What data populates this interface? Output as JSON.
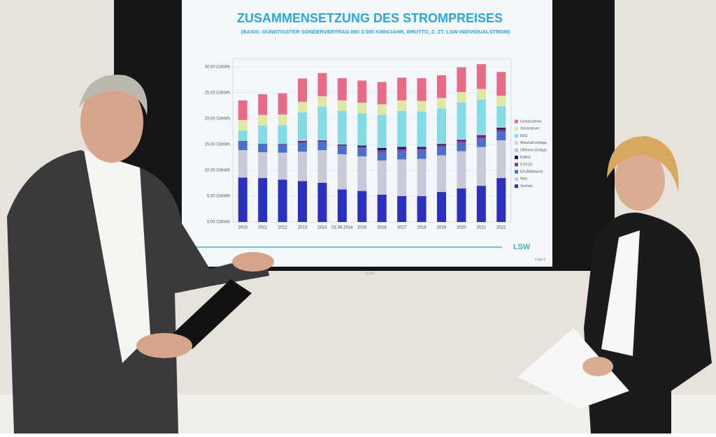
{
  "slide": {
    "title": "ZUSAMMENSETZUNG DES STROMPREISES",
    "subtitle": "(BASIS: GÜNSTIGSTER SONDERVERTRAG BEI 3.500 KWH/JAHR, BRUTTO, Z. ZT. LSW INDIVIDUALSTROM)",
    "logo": "LSW",
    "footer": "Folie 5"
  },
  "screen_brand": "SONY",
  "chart_data": {
    "type": "bar",
    "stacked": true,
    "grid": true,
    "legend": "right",
    "categories": [
      "2010",
      "2011",
      "2012",
      "2013",
      "2014",
      "01.08.2014",
      "2015",
      "2016",
      "2017",
      "2018",
      "2019",
      "2020",
      "2021",
      "2022"
    ],
    "ylim": [
      0,
      32
    ],
    "yticks": [
      {
        "value": 0,
        "label": "0,00 Ct/kWh"
      },
      {
        "value": 5,
        "label": "5,00 Ct/kWh"
      },
      {
        "value": 10,
        "label": "10,00 Ct/kWh"
      },
      {
        "value": 15,
        "label": "15,00 Ct/kWh"
      },
      {
        "value": 20,
        "label": "20,00 Ct/kWh"
      },
      {
        "value": 25,
        "label": "25,00 Ct/kWh"
      },
      {
        "value": 30,
        "label": "30,00 Ct/kWh"
      }
    ],
    "series": [
      {
        "name": "Vertrieb",
        "color": "#2a30c0",
        "values": [
          8.6,
          8.5,
          8.2,
          7.9,
          7.6,
          6.3,
          6.0,
          5.3,
          5.0,
          5.0,
          5.8,
          6.5,
          7.0,
          8.5
        ]
      },
      {
        "name": "Netz",
        "color": "#c9cad8",
        "values": [
          5.3,
          5.0,
          5.2,
          5.7,
          6.3,
          6.8,
          6.7,
          6.6,
          7.1,
          7.2,
          7.1,
          7.2,
          7.5,
          7.3
        ]
      },
      {
        "name": "KA (Mittelwert)",
        "color": "#4a6fcc",
        "values": [
          1.6,
          1.6,
          1.6,
          1.6,
          1.6,
          1.6,
          1.6,
          1.6,
          1.6,
          1.6,
          1.6,
          1.6,
          1.6,
          1.6
        ]
      },
      {
        "name": "§ 19 (2)",
        "color": "#8a3a9a",
        "values": [
          0,
          0,
          0.15,
          0.33,
          0.09,
          0.09,
          0.24,
          0.38,
          0.39,
          0.37,
          0.31,
          0.36,
          0.43,
          0.44
        ]
      },
      {
        "name": "KWKG",
        "color": "#1c1c5c",
        "values": [
          0.13,
          0.03,
          0,
          0.13,
          0.18,
          0.18,
          0.25,
          0.45,
          0.44,
          0.35,
          0.28,
          0.23,
          0.25,
          0.38
        ]
      },
      {
        "name": "Offshore-Umlage",
        "color": "#b4c4e4",
        "values": [
          0,
          0,
          0,
          0.25,
          0.25,
          0.25,
          0.04,
          0.04,
          0.04,
          0.04,
          0.42,
          0.42,
          0.39,
          0.42
        ]
      },
      {
        "name": "Abschalt-Umlage",
        "color": "#d4d4d4",
        "values": [
          0,
          0,
          0,
          0.01,
          0.01,
          0.01,
          0.01,
          0,
          0.01,
          0.01,
          0.01,
          0.01,
          0.01,
          0
        ]
      },
      {
        "name": "EEG",
        "color": "#84dbe8",
        "values": [
          2.05,
          3.53,
          3.59,
          5.28,
          6.24,
          6.24,
          6.17,
          6.35,
          6.88,
          6.79,
          6.41,
          6.76,
          6.5,
          3.72
        ]
      },
      {
        "name": "Stromsteuer",
        "color": "#dfe8a2",
        "values": [
          2.05,
          2.05,
          2.05,
          2.05,
          2.05,
          2.05,
          2.05,
          2.05,
          2.05,
          2.05,
          2.05,
          2.05,
          2.05,
          2.05
        ]
      },
      {
        "name": "Umsatzsteuer",
        "color": "#e86c88",
        "values": [
          3.8,
          4.0,
          4.1,
          4.5,
          4.5,
          4.3,
          4.3,
          4.3,
          4.4,
          4.4,
          4.4,
          4.8,
          4.8,
          4.6
        ]
      }
    ]
  }
}
